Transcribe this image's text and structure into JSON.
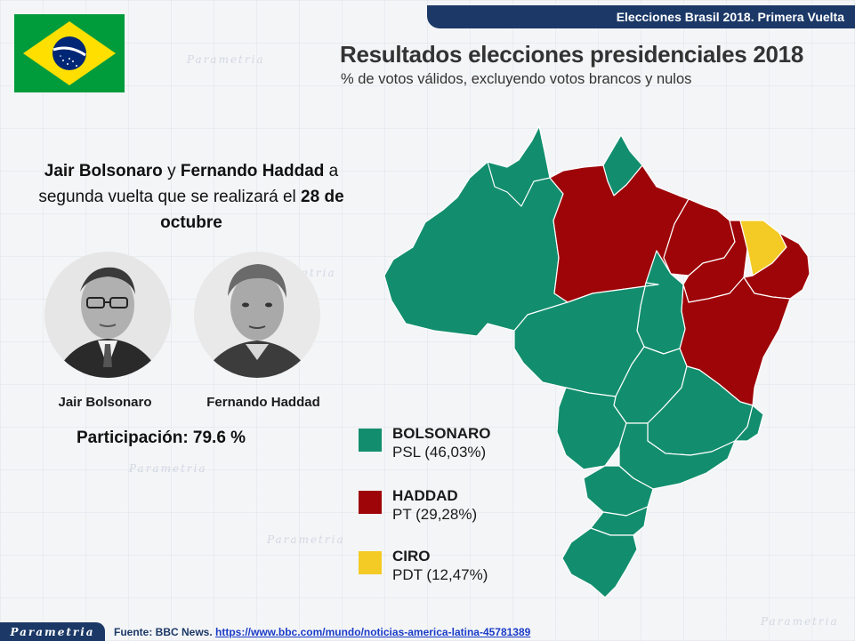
{
  "header": {
    "title": "Elecciones Brasil 2018. Primera Vuelta"
  },
  "flag": {
    "country": "Brasil",
    "colors": {
      "green": "#009c3b",
      "yellow": "#ffdf00",
      "blue": "#002776"
    }
  },
  "headline": {
    "part1": "Jair Bolsonaro",
    "part2": "  y ",
    "part3": "Fernando Haddad",
    "part4": " a segunda vuelta que se realizará el ",
    "part5": "28 de octubre"
  },
  "candidates": [
    {
      "name": "Jair Bolsonaro",
      "photo_icon": "portrait-bolsonaro"
    },
    {
      "name": "Fernando Haddad",
      "photo_icon": "portrait-haddad"
    }
  ],
  "participation": "Participación: 79.6 %",
  "map": {
    "title": "Resultados elecciones presidenciales 2018",
    "subtitle": "% de votos válidos, excluyendo votos brancos y nulos",
    "colors": {
      "bolsonaro": "#128e6e",
      "haddad": "#9e0508",
      "ciro": "#f4cb25"
    },
    "legend": [
      {
        "name": "BOLSONARO",
        "detail": "PSL (46,03%)",
        "color": "#128e6e"
      },
      {
        "name": "HADDAD",
        "detail": "PT (29,28%)",
        "color": "#9e0508"
      },
      {
        "name": "CIRO",
        "detail": "PDT (12,47%)",
        "color": "#f4cb25"
      }
    ]
  },
  "watermark": "Parametria",
  "footer": {
    "logo": "Parametria",
    "source_label": "Fuente: BBC News. ",
    "source_url": "https://www.bbc.com/mundo/noticias-america-latina-45781389"
  }
}
